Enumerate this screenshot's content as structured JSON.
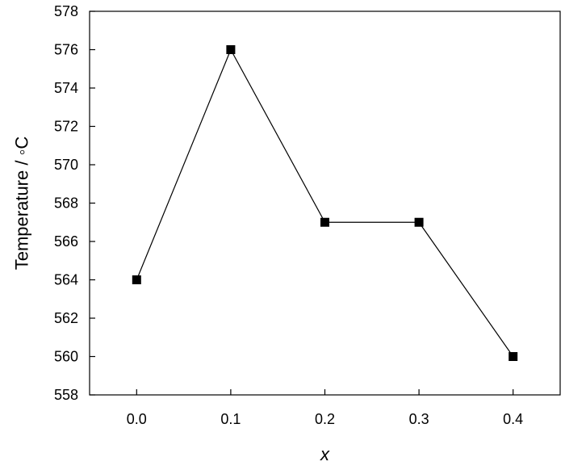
{
  "chart_data": {
    "type": "line",
    "title": "",
    "xlabel": "x",
    "ylabel": "Temperature / ◦C",
    "x": [
      0.0,
      0.1,
      0.2,
      0.3,
      0.4
    ],
    "x_tick_labels": [
      "0.0",
      "0.1",
      "0.2",
      "0.3",
      "0.4"
    ],
    "xlim": [
      -0.05,
      0.45
    ],
    "ylim": [
      558,
      578
    ],
    "y_ticks": [
      558,
      560,
      562,
      564,
      566,
      568,
      570,
      572,
      574,
      576,
      578
    ],
    "y_tick_labels": [
      "558",
      "560",
      "562",
      "564",
      "566",
      "568",
      "570",
      "572",
      "574",
      "576",
      "578"
    ],
    "series": [
      {
        "values": [
          564,
          576,
          567,
          567,
          560
        ],
        "color": "#000000",
        "marker": "square"
      }
    ],
    "grid": false,
    "legend": "none"
  }
}
